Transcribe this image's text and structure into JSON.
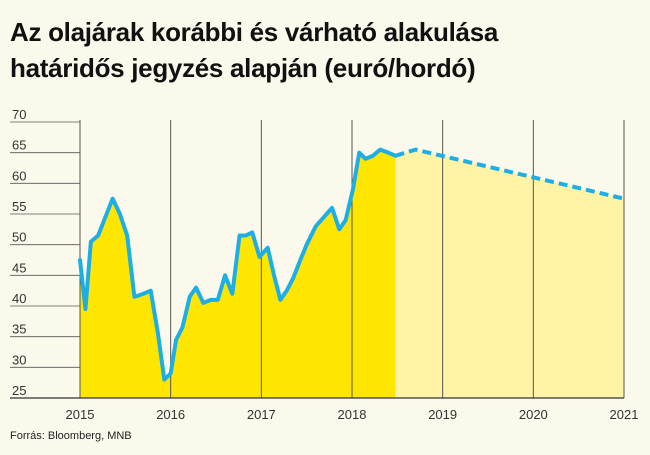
{
  "chart_data": {
    "type": "line",
    "title": "Az olajárak korábbi és várható alakulása határidős jegyzés alapján (euró/hordó)",
    "title_lines": [
      "Az olajárak korábbi és várható alakulása",
      "határidős jegyzés alapján (euró/hordó)"
    ],
    "source": "Forrás: Bloomberg, MNB",
    "xlabel": "",
    "ylabel": "",
    "ylim": [
      25,
      70
    ],
    "y_ticks": [
      "25",
      "30",
      "35",
      "40",
      "45",
      "50",
      "55",
      "60",
      "65",
      "70"
    ],
    "xlim": [
      2015,
      2021
    ],
    "x_ticks": [
      "2015",
      "2016",
      "2017",
      "2018",
      "2019",
      "2020",
      "2021"
    ],
    "grid": "vertical lines at years; horizontal baseline at each y tick",
    "series": [
      {
        "style": "solid",
        "fill_color": "#ffe600",
        "line_color": "#1eaee6",
        "x": [
          2015.0,
          2015.06,
          2015.12,
          2015.2,
          2015.28,
          2015.36,
          2015.44,
          2015.52,
          2015.6,
          2015.7,
          2015.78,
          2015.86,
          2015.93,
          2016.0,
          2016.06,
          2016.13,
          2016.21,
          2016.28,
          2016.36,
          2016.44,
          2016.52,
          2016.6,
          2016.68,
          2016.76,
          2016.83,
          2016.9,
          2016.98,
          2017.07,
          2017.14,
          2017.21,
          2017.28,
          2017.35,
          2017.43,
          2017.5,
          2017.6,
          2017.69,
          2017.78,
          2017.86,
          2017.93,
          2018.01,
          2018.08,
          2018.15,
          2018.23,
          2018.31,
          2018.4,
          2018.48
        ],
        "values": [
          47.5,
          39.5,
          50.5,
          51.5,
          54.5,
          57.5,
          55.0,
          51.5,
          41.5,
          42.0,
          42.5,
          35.5,
          28.0,
          29.0,
          34.5,
          36.5,
          41.5,
          43.0,
          40.5,
          41.0,
          41.0,
          45.0,
          42.0,
          51.5,
          51.5,
          52.0,
          48.0,
          49.5,
          45.0,
          41.0,
          42.5,
          44.5,
          47.5,
          50.0,
          53.0,
          54.5,
          56.0,
          52.5,
          54.0,
          59.0,
          65.0,
          64.0,
          64.5,
          65.5,
          65.0,
          64.5
        ]
      },
      {
        "style": "dashed",
        "fill_color": "#fff3a6",
        "line_color": "#1eaee6",
        "x": [
          2018.48,
          2018.7,
          2021.0
        ],
        "values": [
          64.5,
          65.5,
          57.5
        ]
      }
    ]
  }
}
